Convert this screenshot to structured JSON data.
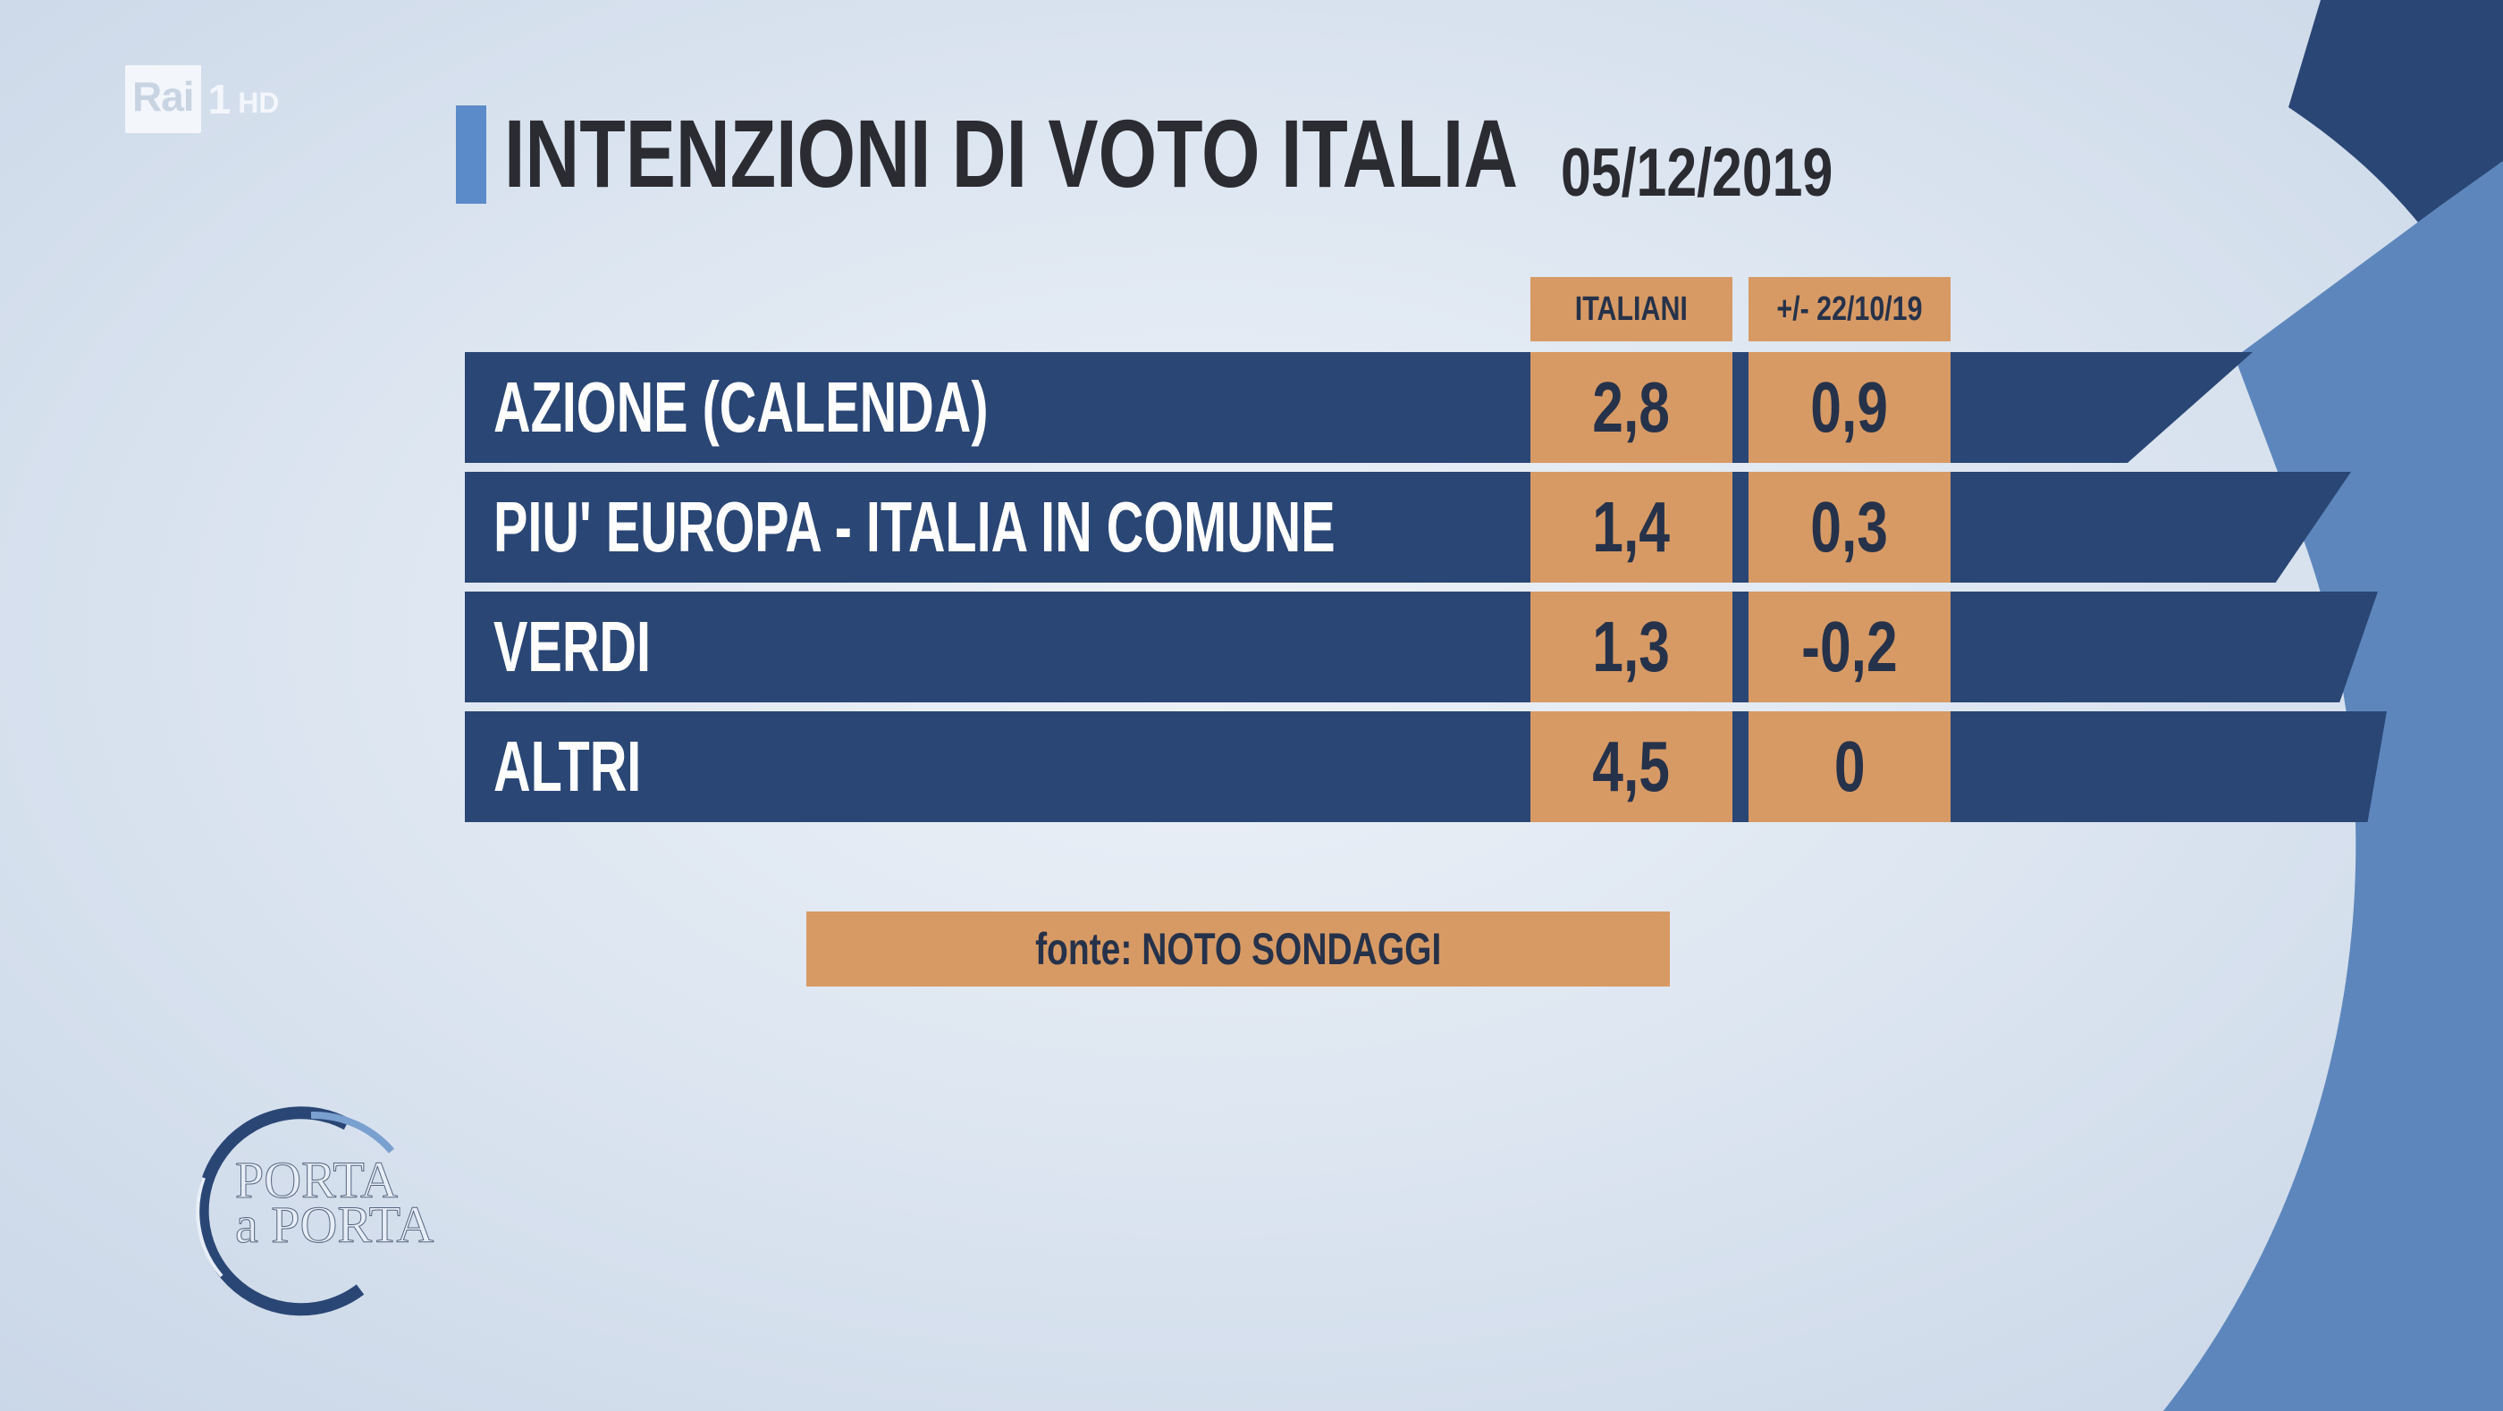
{
  "channel_logo": {
    "rai": "Rai",
    "channel": "1",
    "hd": "HD"
  },
  "title": "INTENZIONI DI VOTO ITALIA",
  "date": "05/12/2019",
  "columns": {
    "col1": "ITALIANI",
    "col2": "+/- 22/10/19"
  },
  "rows": [
    {
      "label": "AZIONE (CALENDA)",
      "italiani": "2,8",
      "delta": "0,9"
    },
    {
      "label": "PIU' EUROPA - ITALIA IN COMUNE",
      "italiani": "1,4",
      "delta": "0,3"
    },
    {
      "label": "VERDI",
      "italiani": "1,3",
      "delta": "-0,2"
    },
    {
      "label": "ALTRI",
      "italiani": "4,5",
      "delta": "0"
    }
  ],
  "source": "fonte: NOTO SONDAGGI",
  "show_logo": {
    "line1": "PORTA",
    "line2": "a PORTA"
  },
  "colors": {
    "row_bg": "#2a4675",
    "cell_bg": "#d89a64",
    "title_accent": "#5b8bc8",
    "text_dark": "#26324a"
  },
  "chart_data": {
    "type": "table",
    "title": "INTENZIONI DI VOTO ITALIA",
    "subtitle": "05/12/2019",
    "columns": [
      "ITALIANI",
      "+/- 22/10/19"
    ],
    "rows": [
      {
        "label": "AZIONE (CALENDA)",
        "values": [
          2.8,
          0.9
        ]
      },
      {
        "label": "PIU' EUROPA - ITALIA IN COMUNE",
        "values": [
          1.4,
          0.3
        ]
      },
      {
        "label": "VERDI",
        "values": [
          1.3,
          -0.2
        ]
      },
      {
        "label": "ALTRI",
        "values": [
          4.5,
          0
        ]
      }
    ],
    "source": "fonte: NOTO SONDAGGI"
  }
}
